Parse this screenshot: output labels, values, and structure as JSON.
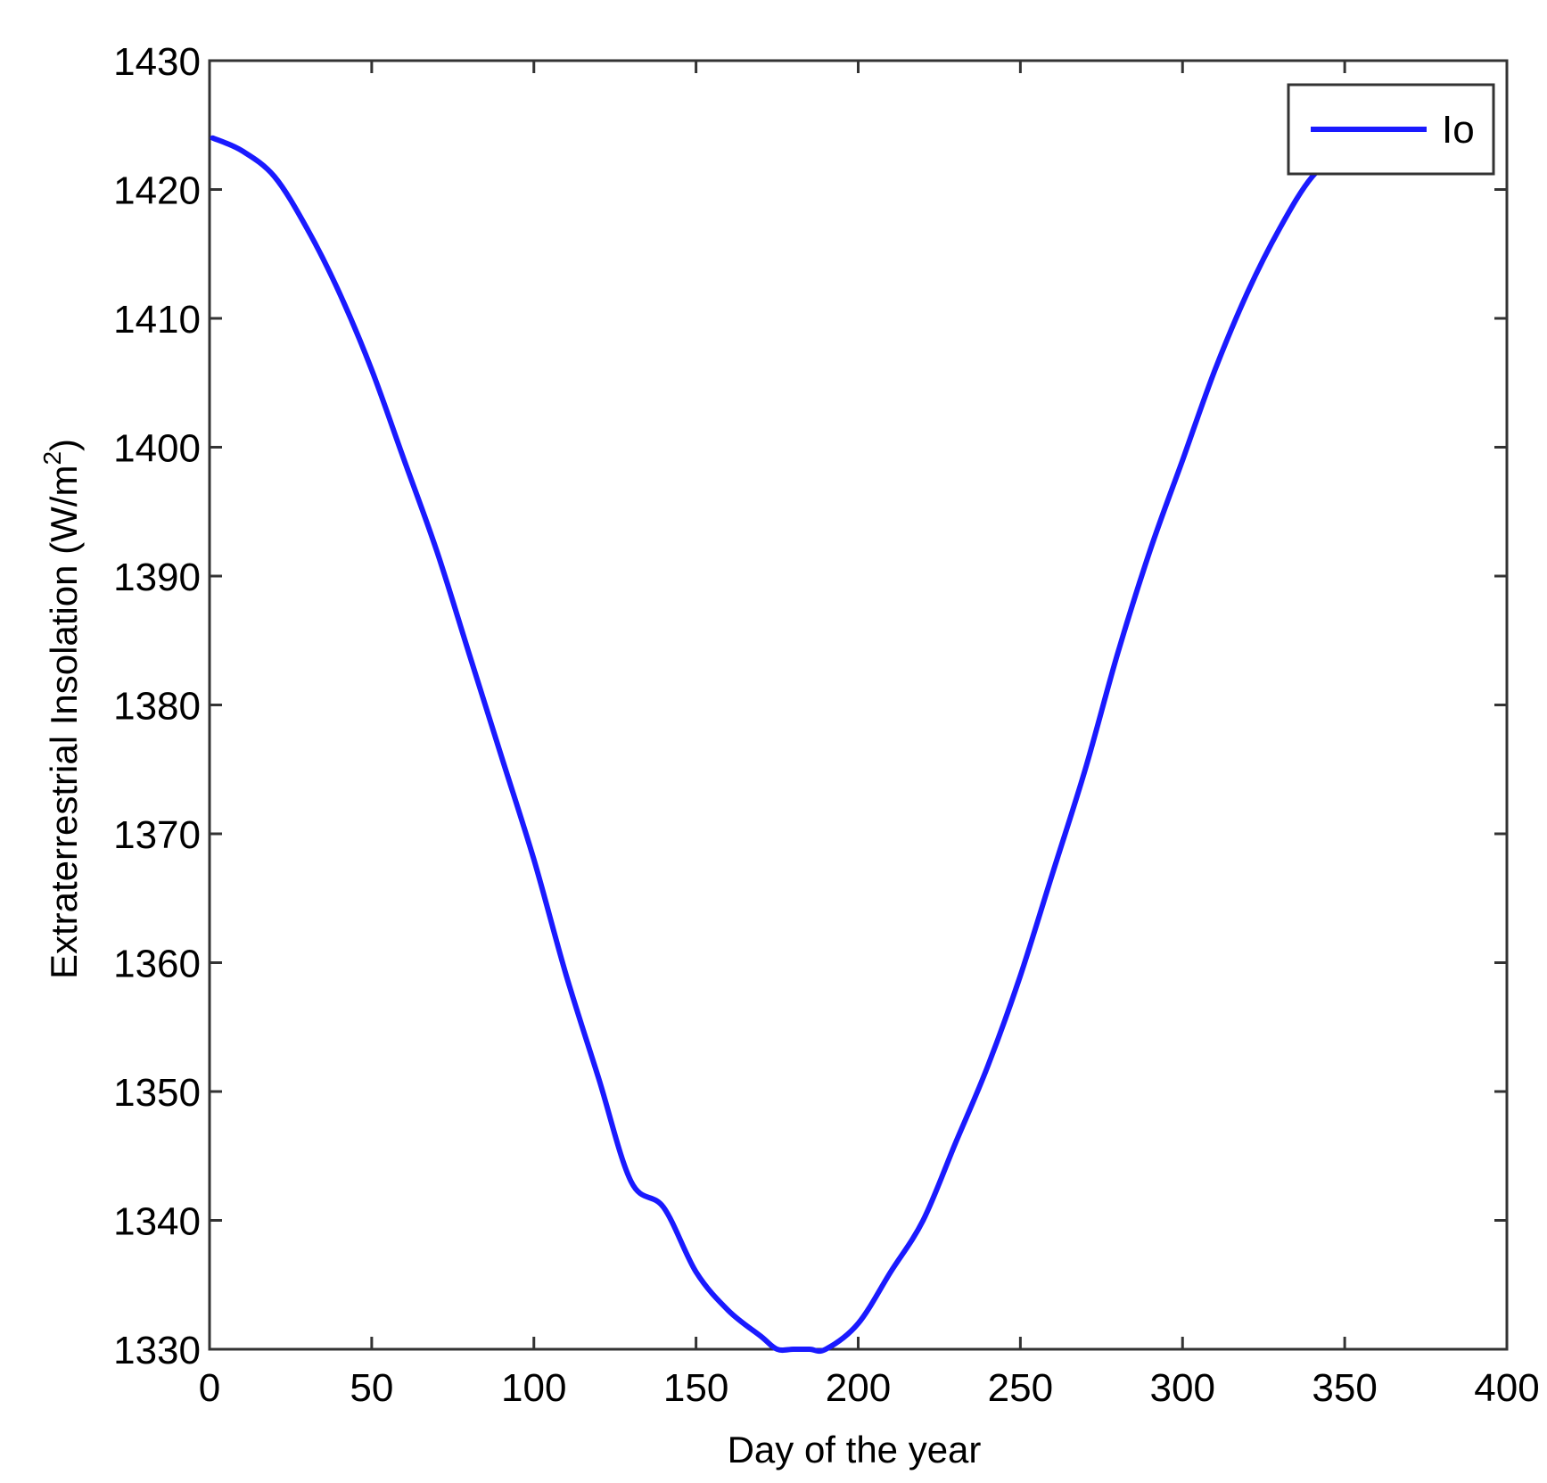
{
  "chart_data": {
    "type": "line",
    "title": "",
    "xlabel": "Day of the year",
    "ylabel": "Extraterrestrial Insolation (W/m",
    "ylabel_superscript": "2",
    "ylabel_close": ")",
    "xlim": [
      0,
      400
    ],
    "ylim": [
      1330,
      1430
    ],
    "xticks": [
      0,
      50,
      100,
      150,
      200,
      250,
      300,
      350,
      400
    ],
    "yticks": [
      1330,
      1340,
      1350,
      1360,
      1370,
      1380,
      1390,
      1400,
      1410,
      1420,
      1430
    ],
    "grid": false,
    "legend_position": "top-right",
    "series": [
      {
        "name": "Io",
        "color": "#1a1aff",
        "x": [
          1,
          10,
          20,
          30,
          40,
          50,
          60,
          70,
          80,
          90,
          100,
          110,
          120,
          130,
          140,
          150,
          160,
          170,
          175,
          180,
          185,
          190,
          200,
          210,
          220,
          230,
          240,
          250,
          260,
          270,
          280,
          290,
          300,
          310,
          320,
          330,
          340,
          350,
          360,
          365
        ],
        "y": [
          1424,
          1423,
          1421,
          1417,
          1412,
          1406,
          1399,
          1392,
          1384,
          1376,
          1368,
          1359,
          1351,
          1343,
          1341,
          1336,
          1333,
          1331,
          1330,
          1330,
          1330,
          1330,
          1332,
          1336,
          1340,
          1346,
          1352,
          1359,
          1367,
          1375,
          1384,
          1392,
          1399,
          1406,
          1412,
          1417,
          1421,
          1423,
          1424,
          1424
        ]
      }
    ]
  }
}
